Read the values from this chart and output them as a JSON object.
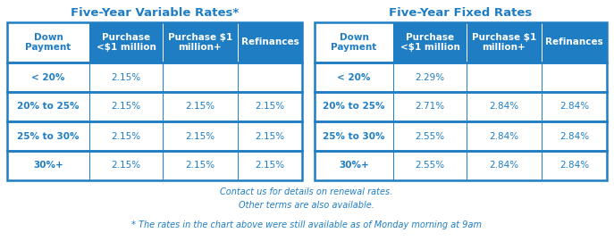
{
  "title_variable": "Five-Year Variable Rates*",
  "title_fixed": "Five-Year Fixed Rates",
  "header_color": "#1F7DC4",
  "header_text_color": "#FFFFFF",
  "cell_text_color": "#1F7DC4",
  "border_color": "#1F7DC4",
  "bg_color": "#FFFFFF",
  "col_headers": [
    "Down\nPayment",
    "Purchase\n<$1 million",
    "Purchase $1\nmillion+",
    "Refinances"
  ],
  "row_labels": [
    "< 20%",
    "20% to 25%",
    "25% to 30%",
    "30%+"
  ],
  "variable_data": [
    [
      "2.15%",
      "",
      ""
    ],
    [
      "2.15%",
      "2.15%",
      "2.15%"
    ],
    [
      "2.15%",
      "2.15%",
      "2.15%"
    ],
    [
      "2.15%",
      "2.15%",
      "2.15%"
    ]
  ],
  "fixed_data": [
    [
      "2.29%",
      "",
      ""
    ],
    [
      "2.71%",
      "2.84%",
      "2.84%"
    ],
    [
      "2.55%",
      "2.84%",
      "2.84%"
    ],
    [
      "2.55%",
      "2.84%",
      "2.84%"
    ]
  ],
  "footer_line1": "Contact us for details on renewal rates.",
  "footer_line2": "Other terms are also available.",
  "footer_line3": "* The rates in the chart above were still available as of Monday morning at 9am",
  "lw_outer": 1.8,
  "lw_inner": 0.7
}
